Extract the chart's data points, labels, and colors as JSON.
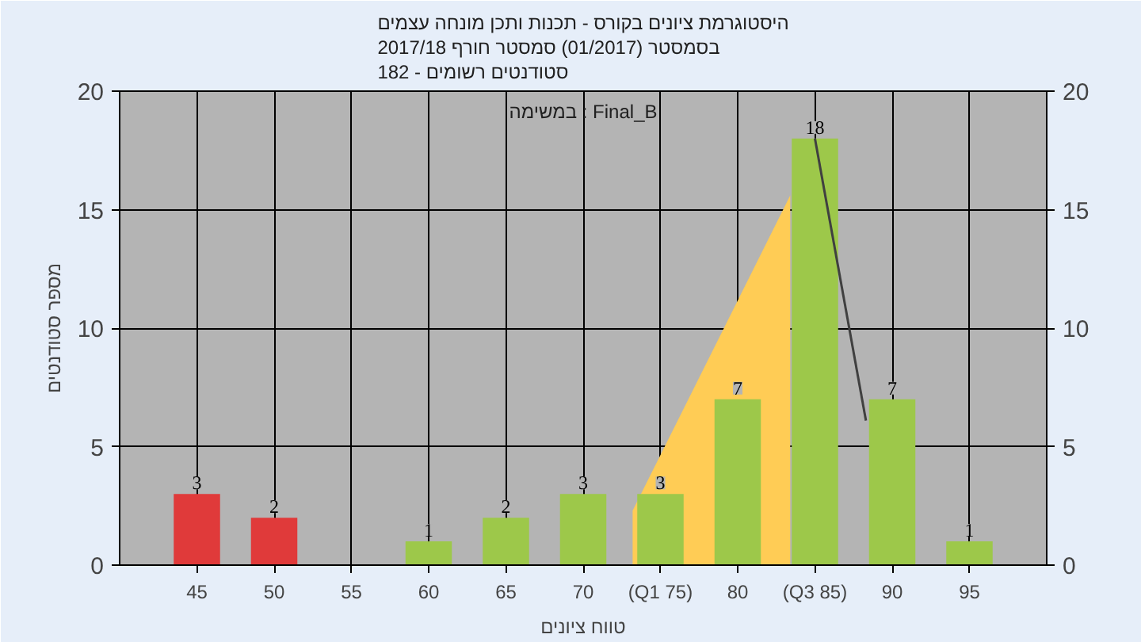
{
  "chart_data": {
    "type": "bar",
    "title": "היסטוגרמת ציונים בקורס - תכנות ותכן מונחה עצמים\nבסמסטר  (01/2017)  סמסטר חורף 2017/18\nסטודנטים רשומים - 182",
    "xlabel": "טווח ציונים",
    "ylabel": "מספר סטודנטים",
    "annotations": [
      "במשימה : Final_B"
    ],
    "x": [
      45,
      50,
      55,
      60,
      65,
      70,
      75,
      80,
      85,
      90,
      95
    ],
    "xlim": [
      40,
      100
    ],
    "xticks": [
      45,
      50,
      55,
      60,
      65,
      70,
      {
        "value": 75,
        "label": "(Q1 75)"
      },
      80,
      {
        "value": 85,
        "label": "(Q3 85)"
      },
      90,
      95
    ],
    "ylim": [
      0,
      20
    ],
    "yticks": [
      0,
      5,
      10,
      15,
      20
    ],
    "y2lim": [
      0,
      20
    ],
    "y2ticks": [
      0,
      5,
      10,
      15,
      20
    ],
    "grid": true,
    "series": [
      {
        "type": "area",
        "color": "#ffcc55",
        "x": [
          73.2,
          77.5,
          83.4
        ],
        "values": [
          2.3,
          7.9,
          15.6
        ]
      },
      {
        "colors": [
          "#e03a3a",
          "#e03a3a",
          "#9dc84a",
          "#9dc84a",
          "#9dc84a",
          "#9dc84a",
          "#9dc84a",
          "#9dc84a",
          "#9dc84a",
          "#9dc84a",
          "#9dc84a"
        ],
        "values": [
          3,
          2,
          0,
          1,
          2,
          3,
          3,
          7,
          18,
          7,
          1
        ],
        "value_labels": [
          "3",
          "2",
          null,
          "1",
          "2",
          "3",
          "3",
          "7",
          "18",
          "7",
          "1"
        ]
      },
      {
        "type": "line",
        "color": "#404040",
        "x": [
          85,
          88.3
        ],
        "values": [
          18,
          6.1
        ]
      }
    ]
  }
}
